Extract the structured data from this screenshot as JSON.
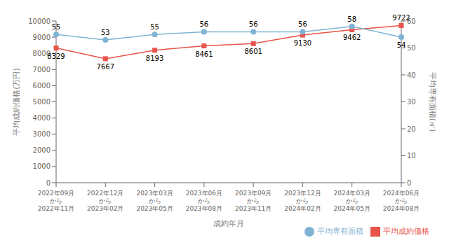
{
  "chart_data": {
    "type": "line",
    "xlabel": "成約年月",
    "ylabel": "平均成約価格(万円)",
    "y2label": "平均専有面積(㎡)",
    "categories": [
      "2022年09月\nから\n2022年11月",
      "2022年12月\nから\n2023年02月",
      "2023年03月\nから\n2023年05月",
      "2023年06月\nから\n2023年08月",
      "2023年09月\nから\n2023年11月",
      "2023年12月\nから\n2024年02月",
      "2024年03月\nから\n2024年05月",
      "2024年06月\nから\n2024年08月"
    ],
    "series": [
      {
        "name": "平均成約価格",
        "color": "#e8534a",
        "marker": "square",
        "axis": "y",
        "values": [
          8329,
          7667,
          8193,
          8461,
          8601,
          9130,
          9462,
          9722
        ]
      },
      {
        "name": "平均専有面積",
        "color": "#7fb3d3",
        "marker": "circle",
        "axis": "y2",
        "values": [
          55,
          53,
          55,
          56,
          56,
          56,
          58,
          54
        ]
      }
    ],
    "ylim": [
      0,
      10000
    ],
    "yticks": [
      0,
      1000,
      2000,
      3000,
      4000,
      5000,
      6000,
      7000,
      8000,
      9000,
      10000
    ],
    "y2lim": [
      0,
      60
    ],
    "y2ticks": [
      0,
      10,
      20,
      30,
      40,
      50,
      60
    ],
    "data_labels": true,
    "grid": false,
    "legend": "lower right"
  }
}
